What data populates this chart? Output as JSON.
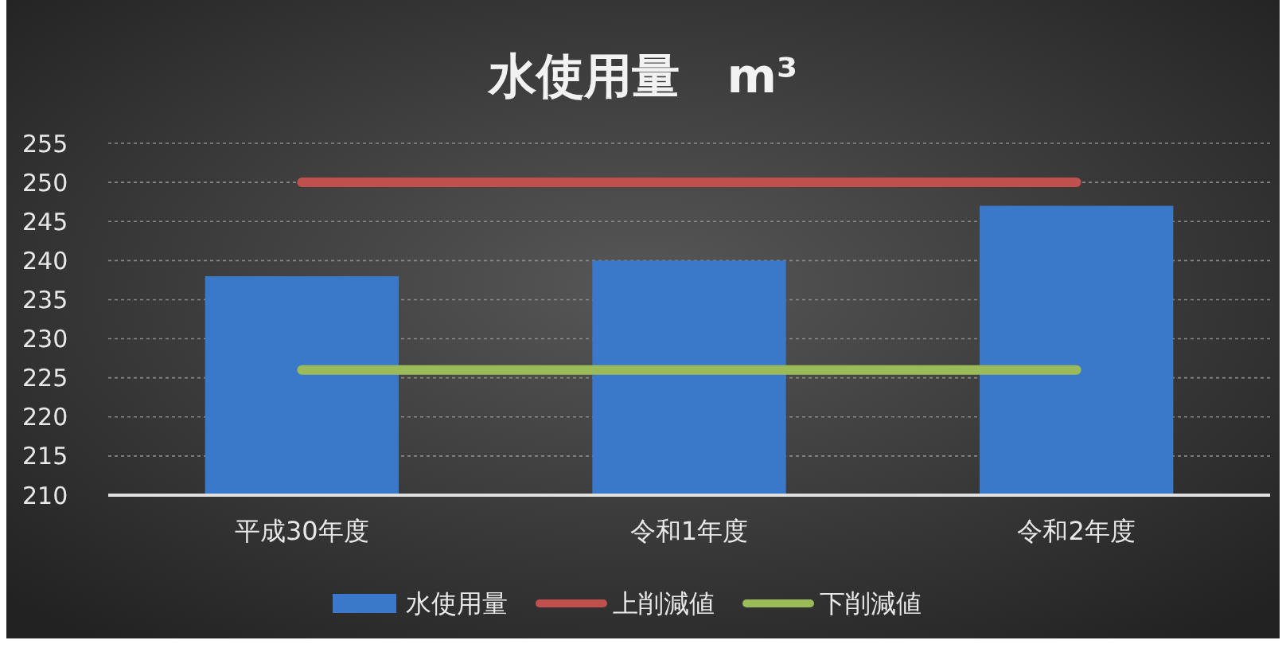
{
  "chart_data": {
    "type": "bar",
    "title": "水使用量　m³",
    "categories": [
      "平成30年度",
      "令和1年度",
      "令和2年度"
    ],
    "series": [
      {
        "name": "水使用量",
        "color": "#3a78c9",
        "values": [
          238,
          240,
          247
        ]
      },
      {
        "name": "上削減値",
        "type": "line",
        "color": "#c0504d",
        "values": [
          250,
          250,
          250
        ]
      },
      {
        "name": "下削減値",
        "type": "line",
        "color": "#9bbb59",
        "values": [
          226,
          226,
          226
        ]
      }
    ],
    "ylim": [
      210,
      255
    ],
    "yticks": [
      210,
      215,
      220,
      225,
      230,
      235,
      240,
      245,
      250,
      255
    ],
    "grid": "y",
    "legend": "bottom",
    "marker": "none",
    "line_style": "solid"
  }
}
